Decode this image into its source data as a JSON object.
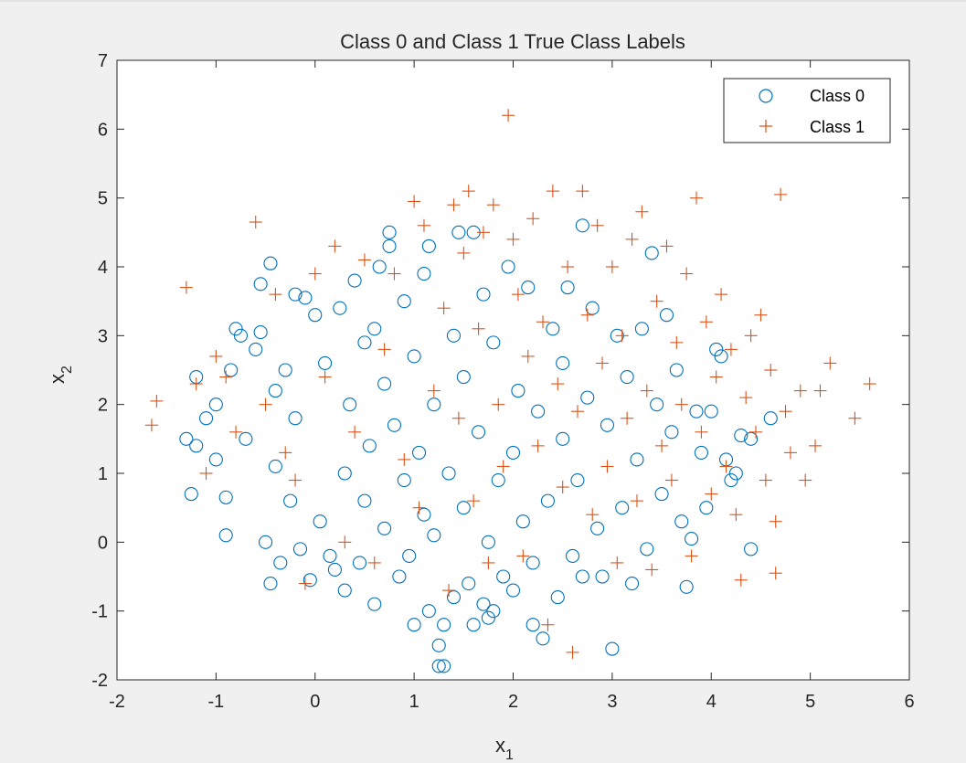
{
  "chart_data": {
    "type": "scatter",
    "title": "Class 0 and Class 1 True Class Labels",
    "xlabel": "x",
    "xlabel_sub": "1",
    "ylabel": "x",
    "ylabel_sub": "2",
    "xlim": [
      -2,
      6
    ],
    "ylim": [
      -2,
      7
    ],
    "xticks": [
      -2,
      -1,
      0,
      1,
      2,
      3,
      4,
      5,
      6
    ],
    "yticks": [
      -2,
      -1,
      0,
      1,
      2,
      3,
      4,
      5,
      6,
      7
    ],
    "grid": false,
    "legend_position": "top-right",
    "series": [
      {
        "name": "Class 0",
        "marker": "circle",
        "color": "#0072BD",
        "points": [
          [
            -1.3,
            1.5
          ],
          [
            -1.2,
            2.4
          ],
          [
            -1.25,
            0.7
          ],
          [
            -1.2,
            1.4
          ],
          [
            -1.1,
            1.8
          ],
          [
            -1.0,
            1.2
          ],
          [
            -1.0,
            2.0
          ],
          [
            -0.9,
            0.65
          ],
          [
            -0.9,
            0.1
          ],
          [
            -0.85,
            2.5
          ],
          [
            -0.8,
            3.1
          ],
          [
            -0.75,
            3.0
          ],
          [
            -0.7,
            1.5
          ],
          [
            -0.6,
            2.8
          ],
          [
            -0.55,
            3.75
          ],
          [
            -0.55,
            3.05
          ],
          [
            -0.5,
            0.0
          ],
          [
            -0.45,
            4.05
          ],
          [
            -0.45,
            -0.6
          ],
          [
            -0.4,
            2.2
          ],
          [
            -0.4,
            1.1
          ],
          [
            -0.35,
            -0.3
          ],
          [
            -0.3,
            2.5
          ],
          [
            -0.25,
            0.6
          ],
          [
            -0.2,
            3.6
          ],
          [
            -0.2,
            1.8
          ],
          [
            -0.15,
            -0.1
          ],
          [
            -0.1,
            3.55
          ],
          [
            -0.05,
            -0.55
          ],
          [
            0.0,
            3.3
          ],
          [
            0.05,
            0.3
          ],
          [
            0.1,
            2.6
          ],
          [
            0.15,
            -0.2
          ],
          [
            0.2,
            -0.4
          ],
          [
            0.25,
            3.4
          ],
          [
            0.3,
            -0.7
          ],
          [
            0.3,
            1.0
          ],
          [
            0.35,
            2.0
          ],
          [
            0.4,
            3.8
          ],
          [
            0.45,
            -0.3
          ],
          [
            0.5,
            2.9
          ],
          [
            0.5,
            0.6
          ],
          [
            0.55,
            1.4
          ],
          [
            0.6,
            -0.9
          ],
          [
            0.6,
            3.1
          ],
          [
            0.65,
            4.0
          ],
          [
            0.7,
            2.3
          ],
          [
            0.7,
            0.2
          ],
          [
            0.75,
            4.5
          ],
          [
            0.75,
            4.3
          ],
          [
            0.8,
            1.7
          ],
          [
            0.85,
            -0.5
          ],
          [
            0.9,
            3.5
          ],
          [
            0.9,
            0.9
          ],
          [
            0.95,
            -0.2
          ],
          [
            1.0,
            -1.2
          ],
          [
            1.0,
            2.7
          ],
          [
            1.05,
            1.3
          ],
          [
            1.1,
            0.4
          ],
          [
            1.1,
            3.9
          ],
          [
            1.15,
            -1.0
          ],
          [
            1.15,
            4.3
          ],
          [
            1.2,
            2.0
          ],
          [
            1.2,
            0.1
          ],
          [
            1.25,
            -1.5
          ],
          [
            1.25,
            -1.8
          ],
          [
            1.3,
            -1.8
          ],
          [
            1.3,
            -1.2
          ],
          [
            1.35,
            1.0
          ],
          [
            1.4,
            3.0
          ],
          [
            1.4,
            -0.8
          ],
          [
            1.45,
            4.5
          ],
          [
            1.5,
            0.5
          ],
          [
            1.5,
            2.4
          ],
          [
            1.55,
            -0.6
          ],
          [
            1.6,
            4.5
          ],
          [
            1.6,
            -1.2
          ],
          [
            1.65,
            1.6
          ],
          [
            1.7,
            3.6
          ],
          [
            1.7,
            -0.9
          ],
          [
            1.75,
            0.0
          ],
          [
            1.75,
            -1.1
          ],
          [
            1.8,
            -1.0
          ],
          [
            1.8,
            2.9
          ],
          [
            1.85,
            0.9
          ],
          [
            1.9,
            -0.5
          ],
          [
            1.95,
            4.0
          ],
          [
            2.0,
            1.3
          ],
          [
            2.0,
            -0.7
          ],
          [
            2.05,
            2.2
          ],
          [
            2.1,
            0.3
          ],
          [
            2.15,
            3.7
          ],
          [
            2.2,
            -1.2
          ],
          [
            2.2,
            -0.3
          ],
          [
            2.25,
            1.9
          ],
          [
            2.3,
            -1.4
          ],
          [
            2.35,
            0.6
          ],
          [
            2.4,
            3.1
          ],
          [
            2.45,
            -0.8
          ],
          [
            2.5,
            1.5
          ],
          [
            2.5,
            2.6
          ],
          [
            2.55,
            3.7
          ],
          [
            2.6,
            -0.2
          ],
          [
            2.65,
            0.9
          ],
          [
            2.7,
            4.6
          ],
          [
            2.7,
            -0.5
          ],
          [
            2.75,
            2.1
          ],
          [
            2.8,
            3.4
          ],
          [
            2.85,
            0.2
          ],
          [
            2.9,
            -0.5
          ],
          [
            2.95,
            1.7
          ],
          [
            3.0,
            -1.55
          ],
          [
            3.05,
            3.0
          ],
          [
            3.1,
            0.5
          ],
          [
            3.15,
            2.4
          ],
          [
            3.2,
            -0.6
          ],
          [
            3.25,
            1.2
          ],
          [
            3.3,
            3.1
          ],
          [
            3.35,
            -0.1
          ],
          [
            3.4,
            4.2
          ],
          [
            3.45,
            2.0
          ],
          [
            3.5,
            0.7
          ],
          [
            3.55,
            3.3
          ],
          [
            3.6,
            1.6
          ],
          [
            3.65,
            2.5
          ],
          [
            3.7,
            0.3
          ],
          [
            3.75,
            -0.65
          ],
          [
            3.8,
            0.05
          ],
          [
            3.85,
            1.9
          ],
          [
            3.9,
            1.3
          ],
          [
            3.95,
            0.5
          ],
          [
            4.0,
            1.9
          ],
          [
            4.05,
            2.8
          ],
          [
            4.1,
            2.7
          ],
          [
            4.15,
            1.2
          ],
          [
            4.2,
            0.9
          ],
          [
            4.25,
            1.0
          ],
          [
            4.3,
            1.55
          ],
          [
            4.4,
            -0.1
          ],
          [
            4.4,
            1.5
          ],
          [
            4.6,
            1.8
          ]
        ]
      },
      {
        "name": "Class 1",
        "marker": "plus",
        "color": "#D95319",
        "points": [
          [
            -1.65,
            1.7
          ],
          [
            -1.6,
            2.05
          ],
          [
            -1.3,
            3.7
          ],
          [
            -1.2,
            2.3
          ],
          [
            -1.1,
            1.0
          ],
          [
            -1.0,
            2.7
          ],
          [
            -0.9,
            2.4
          ],
          [
            -0.8,
            1.6
          ],
          [
            -0.6,
            4.65
          ],
          [
            -0.5,
            2.0
          ],
          [
            -0.4,
            3.6
          ],
          [
            -0.3,
            1.3
          ],
          [
            -0.2,
            0.9
          ],
          [
            -0.1,
            -0.6
          ],
          [
            0.0,
            3.9
          ],
          [
            0.1,
            2.4
          ],
          [
            0.2,
            4.3
          ],
          [
            0.3,
            0.0
          ],
          [
            0.4,
            1.6
          ],
          [
            0.5,
            4.1
          ],
          [
            0.6,
            -0.3
          ],
          [
            0.7,
            2.8
          ],
          [
            0.8,
            3.9
          ],
          [
            0.9,
            1.2
          ],
          [
            1.0,
            4.95
          ],
          [
            1.05,
            0.5
          ],
          [
            1.1,
            4.6
          ],
          [
            1.2,
            2.2
          ],
          [
            1.3,
            3.4
          ],
          [
            1.35,
            -0.7
          ],
          [
            1.4,
            4.9
          ],
          [
            1.45,
            1.8
          ],
          [
            1.5,
            4.2
          ],
          [
            1.55,
            5.1
          ],
          [
            1.6,
            0.6
          ],
          [
            1.65,
            3.1
          ],
          [
            1.7,
            4.5
          ],
          [
            1.75,
            -0.3
          ],
          [
            1.8,
            4.9
          ],
          [
            1.85,
            2.0
          ],
          [
            1.9,
            1.1
          ],
          [
            1.95,
            6.2
          ],
          [
            2.0,
            4.4
          ],
          [
            2.05,
            3.6
          ],
          [
            2.1,
            -0.2
          ],
          [
            2.15,
            2.7
          ],
          [
            2.2,
            4.7
          ],
          [
            2.25,
            1.4
          ],
          [
            2.3,
            3.2
          ],
          [
            2.35,
            -1.2
          ],
          [
            2.4,
            5.1
          ],
          [
            2.45,
            2.3
          ],
          [
            2.5,
            0.8
          ],
          [
            2.55,
            4.0
          ],
          [
            2.6,
            -1.6
          ],
          [
            2.65,
            1.9
          ],
          [
            2.7,
            5.1
          ],
          [
            2.75,
            3.3
          ],
          [
            2.8,
            0.4
          ],
          [
            2.85,
            4.6
          ],
          [
            2.9,
            2.6
          ],
          [
            2.95,
            1.1
          ],
          [
            3.0,
            4.0
          ],
          [
            3.05,
            -0.3
          ],
          [
            3.1,
            3.0
          ],
          [
            3.15,
            1.8
          ],
          [
            3.2,
            4.4
          ],
          [
            3.25,
            0.6
          ],
          [
            3.3,
            4.8
          ],
          [
            3.35,
            2.2
          ],
          [
            3.4,
            -0.4
          ],
          [
            3.45,
            3.5
          ],
          [
            3.5,
            1.4
          ],
          [
            3.55,
            4.3
          ],
          [
            3.6,
            0.9
          ],
          [
            3.65,
            2.9
          ],
          [
            3.7,
            2.0
          ],
          [
            3.75,
            3.9
          ],
          [
            3.8,
            -0.2
          ],
          [
            3.85,
            5.0
          ],
          [
            3.9,
            1.6
          ],
          [
            3.95,
            3.2
          ],
          [
            4.0,
            0.7
          ],
          [
            4.05,
            2.4
          ],
          [
            4.1,
            3.6
          ],
          [
            4.15,
            1.1
          ],
          [
            4.2,
            2.8
          ],
          [
            4.25,
            0.4
          ],
          [
            4.3,
            -0.55
          ],
          [
            4.35,
            2.1
          ],
          [
            4.4,
            3.0
          ],
          [
            4.45,
            1.6
          ],
          [
            4.5,
            3.3
          ],
          [
            4.55,
            0.9
          ],
          [
            4.6,
            2.5
          ],
          [
            4.65,
            -0.45
          ],
          [
            4.65,
            0.3
          ],
          [
            4.7,
            5.05
          ],
          [
            4.75,
            1.9
          ],
          [
            4.8,
            1.3
          ],
          [
            4.9,
            2.2
          ],
          [
            4.95,
            0.9
          ],
          [
            5.05,
            1.4
          ],
          [
            5.1,
            2.2
          ],
          [
            5.2,
            2.6
          ],
          [
            5.45,
            1.8
          ],
          [
            5.6,
            2.3
          ]
        ]
      }
    ]
  }
}
